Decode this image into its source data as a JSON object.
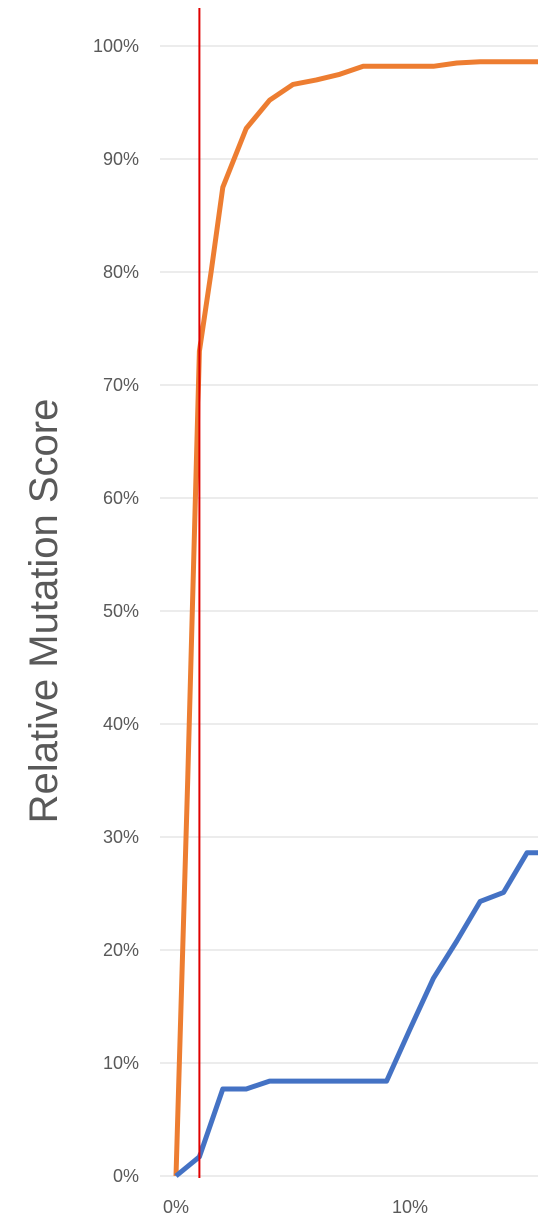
{
  "chart_data": {
    "type": "line",
    "title": "",
    "xlabel": "",
    "ylabel": "Relative Mutation Score",
    "xlim": [
      0,
      0.155
    ],
    "ylim": [
      0,
      1
    ],
    "x_tick_values": [
      0,
      0.1
    ],
    "x_tick_labels": [
      "0%",
      "10%"
    ],
    "y_tick_values": [
      0,
      0.1,
      0.2,
      0.3,
      0.4,
      0.5,
      0.6,
      0.7,
      0.8,
      0.9,
      1.0
    ],
    "y_tick_labels": [
      "0%",
      "10%",
      "20%",
      "30%",
      "40%",
      "50%",
      "60%",
      "70%",
      "80%",
      "90%",
      "100%"
    ],
    "grid": "horizontal",
    "legend": "none",
    "reference_line": {
      "x": 0.01,
      "color": "#e00000"
    },
    "series": [
      {
        "color": "#ed7d31",
        "x": [
          0,
          0.005,
          0.01,
          0.015,
          0.02,
          0.03,
          0.04,
          0.05,
          0.06,
          0.07,
          0.08,
          0.09,
          0.1,
          0.11,
          0.12,
          0.13,
          0.14,
          0.15,
          0.155
        ],
        "y": [
          0,
          0.35,
          0.73,
          0.8,
          0.875,
          0.927,
          0.952,
          0.966,
          0.97,
          0.975,
          0.982,
          0.982,
          0.982,
          0.982,
          0.985,
          0.986,
          0.986,
          0.986,
          0.986
        ]
      },
      {
        "color": "#4472c4",
        "x": [
          0,
          0.01,
          0.02,
          0.03,
          0.04,
          0.05,
          0.06,
          0.07,
          0.08,
          0.09,
          0.1,
          0.11,
          0.12,
          0.13,
          0.14,
          0.15,
          0.155
        ],
        "y": [
          0,
          0.017,
          0.077,
          0.077,
          0.084,
          0.084,
          0.084,
          0.084,
          0.084,
          0.084,
          0.13,
          0.175,
          0.208,
          0.243,
          0.251,
          0.286,
          0.286
        ]
      }
    ]
  }
}
